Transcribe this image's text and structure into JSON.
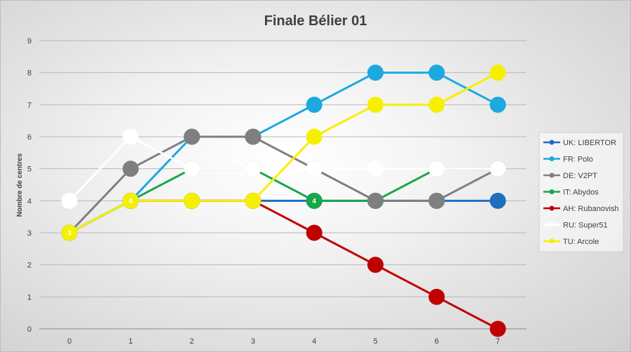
{
  "chart_data": {
    "type": "line",
    "title": "Finale Bélier 01",
    "xlabel": "",
    "ylabel": "Nombre de centres",
    "x": [
      0,
      1,
      2,
      3,
      4,
      5,
      6,
      7
    ],
    "ylim": [
      0,
      9
    ],
    "yticks": [
      0,
      1,
      2,
      3,
      4,
      5,
      6,
      7,
      8,
      9
    ],
    "grid": true,
    "legend_position": "right",
    "series": [
      {
        "name": "UK: LIBERTOR",
        "color": "#1f6fbf",
        "values": [
          3,
          4,
          4,
          4,
          4,
          4,
          4,
          4
        ],
        "label_points": {}
      },
      {
        "name": "FR: Polo",
        "color": "#1ba9e0",
        "values": [
          3,
          4,
          6,
          6,
          7,
          8,
          8,
          7
        ],
        "label_points": {}
      },
      {
        "name": "DE: V2PT",
        "color": "#7f7f7f",
        "values": [
          3,
          5,
          6,
          6,
          5,
          4,
          4,
          5
        ],
        "label_points": {}
      },
      {
        "name": "IT: Abydos",
        "color": "#1aa64a",
        "values": [
          3,
          4,
          5,
          5,
          4,
          4,
          5,
          5
        ],
        "label_points": {
          "4": "4",
          "5": "4"
        }
      },
      {
        "name": "AH: Rubanovish",
        "color": "#c00000",
        "values": [
          3,
          4,
          4,
          4,
          3,
          2,
          1,
          0
        ],
        "label_points": {}
      },
      {
        "name": "RU: Super51",
        "color": "#ffffff",
        "values": [
          4,
          6,
          5,
          5,
          5,
          5,
          5,
          5
        ],
        "label_points": {}
      },
      {
        "name": "TU: Arcole",
        "color": "#f5f000",
        "values": [
          3,
          4,
          4,
          4,
          6,
          7,
          7,
          8
        ],
        "label_points": {
          "0": "3",
          "1": "4"
        }
      }
    ],
    "draw_order": [
      "UK: LIBERTOR",
      "AH: Rubanovish",
      "IT: Abydos",
      "FR: Polo",
      "DE: V2PT",
      "RU: Super51",
      "TU: Arcole"
    ]
  }
}
